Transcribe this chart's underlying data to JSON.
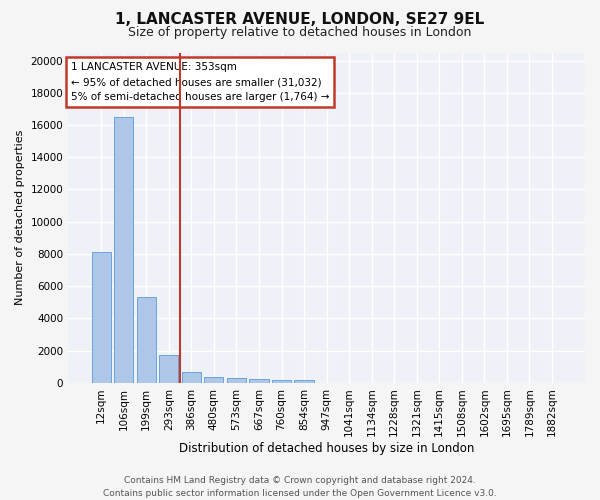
{
  "title": "1, LANCASTER AVENUE, LONDON, SE27 9EL",
  "subtitle": "Size of property relative to detached houses in London",
  "xlabel": "Distribution of detached houses by size in London",
  "ylabel": "Number of detached properties",
  "categories": [
    "12sqm",
    "106sqm",
    "199sqm",
    "293sqm",
    "386sqm",
    "480sqm",
    "573sqm",
    "667sqm",
    "760sqm",
    "854sqm",
    "947sqm",
    "1041sqm",
    "1134sqm",
    "1228sqm",
    "1321sqm",
    "1415sqm",
    "1508sqm",
    "1602sqm",
    "1695sqm",
    "1789sqm",
    "1882sqm"
  ],
  "values": [
    8100,
    16500,
    5300,
    1750,
    700,
    380,
    290,
    230,
    200,
    170,
    0,
    0,
    0,
    0,
    0,
    0,
    0,
    0,
    0,
    0,
    0
  ],
  "bar_color": "#aec6e8",
  "bar_edge_color": "#5b9bd5",
  "vline_color": "#c0392b",
  "annotation_lines": [
    "1 LANCASTER AVENUE: 353sqm",
    "← 95% of detached houses are smaller (31,032)",
    "5% of semi-detached houses are larger (1,764) →"
  ],
  "annotation_box_color": "#c0392b",
  "ylim": [
    0,
    20500
  ],
  "yticks": [
    0,
    2000,
    4000,
    6000,
    8000,
    10000,
    12000,
    14000,
    16000,
    18000,
    20000
  ],
  "footer_line1": "Contains HM Land Registry data © Crown copyright and database right 2024.",
  "footer_line2": "Contains public sector information licensed under the Open Government Licence v3.0.",
  "bg_color": "#eef2f8",
  "grid_color": "#ffffff",
  "title_fontsize": 11,
  "subtitle_fontsize": 9,
  "xlabel_fontsize": 8.5,
  "ylabel_fontsize": 8,
  "tick_fontsize": 7.5,
  "footer_fontsize": 6.5,
  "ann_fontsize": 7.5
}
